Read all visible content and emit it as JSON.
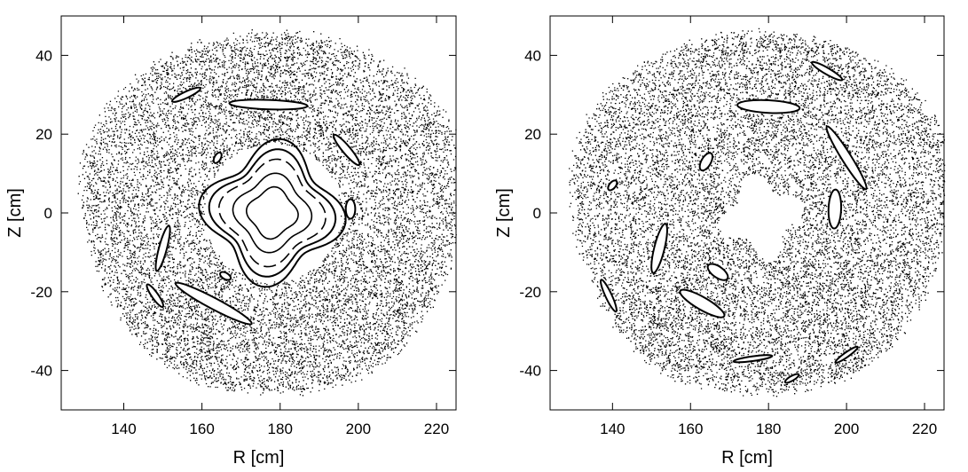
{
  "chart_data": [
    {
      "type": "scatter",
      "title": "",
      "xlabel": "R  [cm]",
      "ylabel": "Z  [cm]",
      "xlim": [
        124,
        225
      ],
      "ylim": [
        -50,
        50
      ],
      "xticks": [
        "140",
        "160",
        "180",
        "200",
        "220"
      ],
      "yticks": [
        "40",
        "20",
        "0",
        "-20",
        "-40"
      ],
      "xtick_values": [
        140,
        160,
        180,
        200,
        220
      ],
      "ytick_values": [
        40,
        20,
        0,
        -20,
        -40
      ],
      "grid": false,
      "marker_color": "#000000",
      "description_of_data": "Poincare scatter of field-line points filling roughly a disk centered at (178, 0) with radius about 48 cm",
      "series": [
        {
          "kind": "stochastic-cloud",
          "center": [
            178,
            0
          ],
          "radius": 48,
          "points": 14000
        },
        {
          "kind": "closed-flux-surfaces",
          "center": [
            178,
            0
          ],
          "radii": [
            16,
            14,
            12,
            9,
            6
          ]
        },
        {
          "kind": "islands",
          "items": [
            {
              "r": 177,
              "z": 27.5,
              "len": 20,
              "wid": 1.2,
              "ang": -2
            },
            {
              "r": 197,
              "z": 16,
              "len": 10,
              "wid": 1.0,
              "ang": -50
            },
            {
              "r": 198,
              "z": 1,
              "len": 5,
              "wid": 1.2,
              "ang": 90
            },
            {
              "r": 150,
              "z": -9,
              "len": 12,
              "wid": 1.0,
              "ang": 75
            },
            {
              "r": 163,
              "z": -23,
              "len": 22,
              "wid": 1.4,
              "ang": -28
            },
            {
              "r": 148,
              "z": -21,
              "len": 7,
              "wid": 0.8,
              "ang": -55
            },
            {
              "r": 164,
              "z": 14,
              "len": 3,
              "wid": 0.8,
              "ang": 60
            },
            {
              "r": 166,
              "z": -16,
              "len": 3,
              "wid": 0.8,
              "ang": -30
            },
            {
              "r": 156,
              "z": 30,
              "len": 8,
              "wid": 0.8,
              "ang": 25
            }
          ]
        }
      ]
    },
    {
      "type": "scatter",
      "title": "",
      "xlabel": "R  [cm]",
      "ylabel": "Z  [cm]",
      "xlim": [
        124,
        225
      ],
      "ylim": [
        -50,
        50
      ],
      "xticks": [
        "140",
        "160",
        "180",
        "200",
        "220"
      ],
      "yticks": [
        "40",
        "20",
        "0",
        "-20",
        "-40"
      ],
      "xtick_values": [
        140,
        160,
        180,
        200,
        220
      ],
      "ytick_values": [
        40,
        20,
        0,
        -20,
        -40
      ],
      "grid": false,
      "marker_color": "#000000",
      "description_of_data": "Poincare scatter with a central void near (178, -1) and several elongated island chains",
      "series": [
        {
          "kind": "stochastic-cloud",
          "center": [
            178,
            0
          ],
          "radius": 48,
          "points": 14000
        },
        {
          "kind": "central-void",
          "center": [
            178,
            -1
          ],
          "radius": 9
        },
        {
          "kind": "islands",
          "items": [
            {
              "r": 180,
              "z": 27,
              "len": 16,
              "wid": 1.6,
              "ang": -3
            },
            {
              "r": 200,
              "z": 14,
              "len": 19,
              "wid": 1.2,
              "ang": -58
            },
            {
              "r": 197,
              "z": 1,
              "len": 10,
              "wid": 1.6,
              "ang": 88
            },
            {
              "r": 152,
              "z": -9,
              "len": 13,
              "wid": 1.3,
              "ang": 76
            },
            {
              "r": 163,
              "z": -23,
              "len": 13,
              "wid": 1.6,
              "ang": -30
            },
            {
              "r": 167,
              "z": -15,
              "len": 6,
              "wid": 1.4,
              "ang": -35
            },
            {
              "r": 164,
              "z": 13,
              "len": 5,
              "wid": 1.2,
              "ang": 60
            },
            {
              "r": 140,
              "z": 7,
              "len": 3,
              "wid": 0.8,
              "ang": 50
            },
            {
              "r": 139,
              "z": -21,
              "len": 9,
              "wid": 0.8,
              "ang": -65
            },
            {
              "r": 195,
              "z": 36,
              "len": 9,
              "wid": 0.8,
              "ang": -30
            },
            {
              "r": 176,
              "z": -37,
              "len": 10,
              "wid": 0.6,
              "ang": 8
            },
            {
              "r": 186,
              "z": -42,
              "len": 4,
              "wid": 0.6,
              "ang": 30
            },
            {
              "r": 200,
              "z": -36,
              "len": 7,
              "wid": 0.6,
              "ang": 35
            }
          ]
        }
      ]
    }
  ]
}
